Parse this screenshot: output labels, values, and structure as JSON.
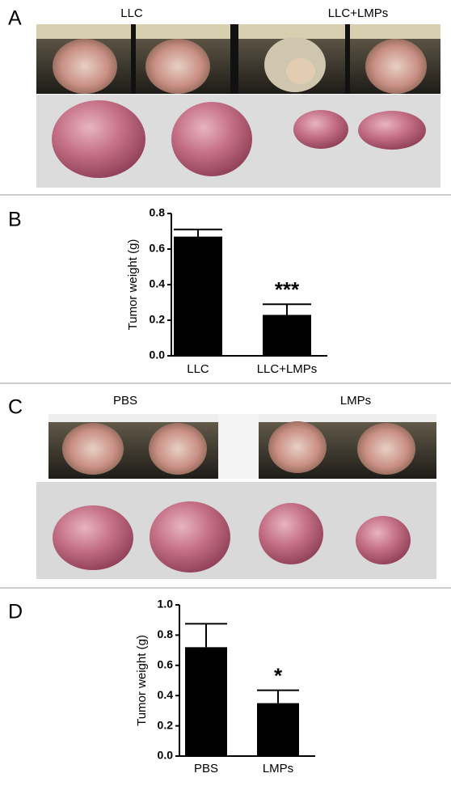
{
  "panels": {
    "a": {
      "label": "A",
      "groups": [
        "LLC",
        "LLC+LMPs"
      ]
    },
    "b": {
      "label": "B"
    },
    "c": {
      "label": "C",
      "groups": [
        "PBS",
        "LMPs"
      ]
    },
    "d": {
      "label": "D"
    }
  },
  "chart_data": [
    {
      "type": "bar",
      "y_label": "Tumor weight (g)",
      "categories": [
        "LLC",
        "LLC+LMPs"
      ],
      "values": [
        0.67,
        0.23
      ],
      "errors": [
        0.04,
        0.06
      ],
      "color": "#000000",
      "ylim": [
        0,
        0.8
      ],
      "yticks": [
        {
          "value": 0,
          "label": "0.0"
        },
        0.2,
        0.4,
        0.6,
        0.8
      ],
      "annotations": [
        "",
        "***"
      ]
    },
    {
      "type": "bar",
      "y_label": "Tumor weight (g)",
      "categories": [
        "PBS",
        "LMPs"
      ],
      "values": [
        0.72,
        0.35
      ],
      "errors": [
        0.155,
        0.085
      ],
      "color": "#000000",
      "ylim": [
        0,
        1.0
      ],
      "yticks": [
        {
          "value": 0,
          "label": "0.0"
        },
        0.2,
        0.4,
        0.6,
        0.8,
        {
          "value": 1.0,
          "label": "1.0"
        }
      ],
      "annotations": [
        "",
        "*"
      ]
    }
  ]
}
